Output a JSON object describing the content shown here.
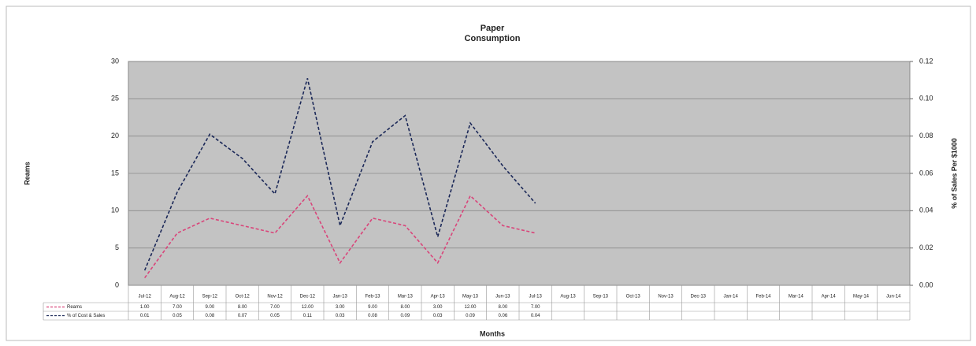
{
  "chart_data": {
    "type": "line",
    "title": [
      "Paper",
      "Consumption"
    ],
    "y_label": "Reams",
    "y2_label": "% of Sales Per $1000",
    "x_label": "Months",
    "categories": [
      "Jul-12",
      "Aug-12",
      "Sep-12",
      "Oct-12",
      "Nov-12",
      "Dec-12",
      "Jan-13",
      "Feb-13",
      "Mar-13",
      "Apr-13",
      "May-13",
      "Jun-13",
      "Jul-13",
      "Aug-13",
      "Sep-13",
      "Oct-13",
      "Nov-13",
      "Dec-13",
      "Jan-14",
      "Feb-14",
      "Mar-14",
      "Apr-14",
      "May-14",
      "Jun-14"
    ],
    "series": [
      {
        "name": "Reams",
        "color": "#d9457a",
        "axis": "y",
        "values": [
          1,
          7,
          9,
          8,
          7,
          12,
          3,
          9,
          8,
          3,
          12,
          8,
          7,
          null,
          null,
          null,
          null,
          null,
          null,
          null,
          null,
          null,
          null,
          null
        ],
        "value_labels": [
          "1.00",
          "7.00",
          "9.00",
          "8.00",
          "7.00",
          "12.00",
          "3.00",
          "9.00",
          "8.00",
          "3.00",
          "12.00",
          "8.00",
          "7.00",
          null,
          null,
          null,
          null,
          null,
          null,
          null,
          null,
          null,
          null,
          null
        ]
      },
      {
        "name": "% of Cost & Sales",
        "color": "#1b2858",
        "axis": "y2",
        "values": [
          0.008,
          0.05,
          0.081,
          0.068,
          0.049,
          0.111,
          0.032,
          0.077,
          0.091,
          0.026,
          0.087,
          0.064,
          0.044,
          null,
          null,
          null,
          null,
          null,
          null,
          null,
          null,
          null,
          null,
          null
        ],
        "value_labels": [
          "0.01",
          "0.05",
          "0.08",
          "0.07",
          "0.05",
          "0.11",
          "0.03",
          "0.08",
          "0.09",
          "0.03",
          "0.09",
          "0.06",
          "0.04",
          null,
          null,
          null,
          null,
          null,
          null,
          null,
          null,
          null,
          null,
          null
        ]
      }
    ],
    "ylim": [
      0,
      30
    ],
    "yticks": [
      0,
      5,
      10,
      15,
      20,
      25,
      30
    ],
    "y2lim": [
      0,
      0.12
    ],
    "y2ticks": [
      {
        "value": 0,
        "label": "0.00"
      },
      {
        "value": 0.02,
        "label": "0.02"
      },
      {
        "value": 0.04,
        "label": "0.04"
      },
      {
        "value": 0.06,
        "label": "0.06"
      },
      {
        "value": 0.08,
        "label": "0.08"
      },
      {
        "value": 0.1,
        "label": "0.10"
      },
      {
        "value": 0.12,
        "label": "0.12"
      }
    ],
    "grid": true,
    "plot_background": "#c3c3c3"
  }
}
